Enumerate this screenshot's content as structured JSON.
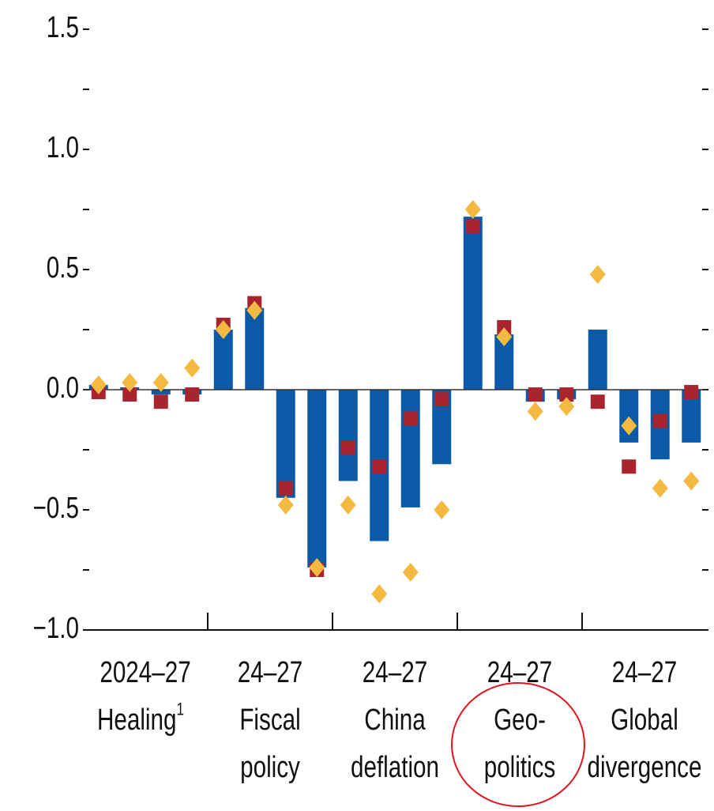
{
  "chart_data": {
    "type": "bar",
    "groups": [
      {
        "lines": [
          "2024–27",
          "Healing"
        ],
        "sup": "1"
      },
      {
        "lines": [
          "24–27",
          "Fiscal",
          "policy"
        ]
      },
      {
        "lines": [
          "24–27",
          "China",
          "deflation"
        ]
      },
      {
        "lines": [
          "24–27",
          "Geo-",
          "politics"
        ]
      },
      {
        "lines": [
          "24–27",
          "Global",
          "divergence"
        ]
      }
    ],
    "bars_per_group": 4,
    "series": [
      {
        "color": "#0a5aa8",
        "marker": "bar",
        "values": [
          0.02,
          0.01,
          -0.02,
          -0.02,
          0.25,
          0.34,
          -0.45,
          -0.74,
          -0.38,
          -0.63,
          -0.49,
          -0.31,
          0.72,
          0.23,
          -0.05,
          -0.04,
          0.25,
          -0.22,
          -0.29,
          -0.22
        ]
      },
      {
        "color": "#a8242e",
        "marker": "square",
        "values": [
          -0.01,
          -0.02,
          -0.05,
          -0.02,
          0.27,
          0.36,
          -0.41,
          -0.75,
          -0.24,
          -0.32,
          -0.12,
          -0.04,
          0.68,
          0.26,
          -0.02,
          -0.02,
          -0.05,
          -0.32,
          -0.13,
          -0.01
        ]
      },
      {
        "color": "#f3b941",
        "marker": "diamond",
        "values": [
          0.02,
          0.03,
          0.03,
          0.09,
          0.25,
          0.33,
          -0.48,
          -0.74,
          -0.48,
          -0.85,
          -0.76,
          -0.5,
          0.75,
          0.22,
          -0.09,
          -0.07,
          0.48,
          -0.15,
          -0.41,
          -0.38
        ]
      }
    ],
    "ylim": [
      -1,
      1.5
    ],
    "yticks": [
      {
        "value": -1,
        "label": "−1.0"
      },
      {
        "value": -0.5,
        "label": "−0.5"
      },
      {
        "value": 0,
        "label": "0.0"
      },
      {
        "value": 0.5,
        "label": "0.5"
      },
      {
        "value": 1,
        "label": "1.0"
      },
      {
        "value": 1.5,
        "label": "1.5"
      }
    ],
    "minor_yticks": [
      -0.75,
      -0.25,
      0.25,
      0.75,
      1.25
    ]
  }
}
